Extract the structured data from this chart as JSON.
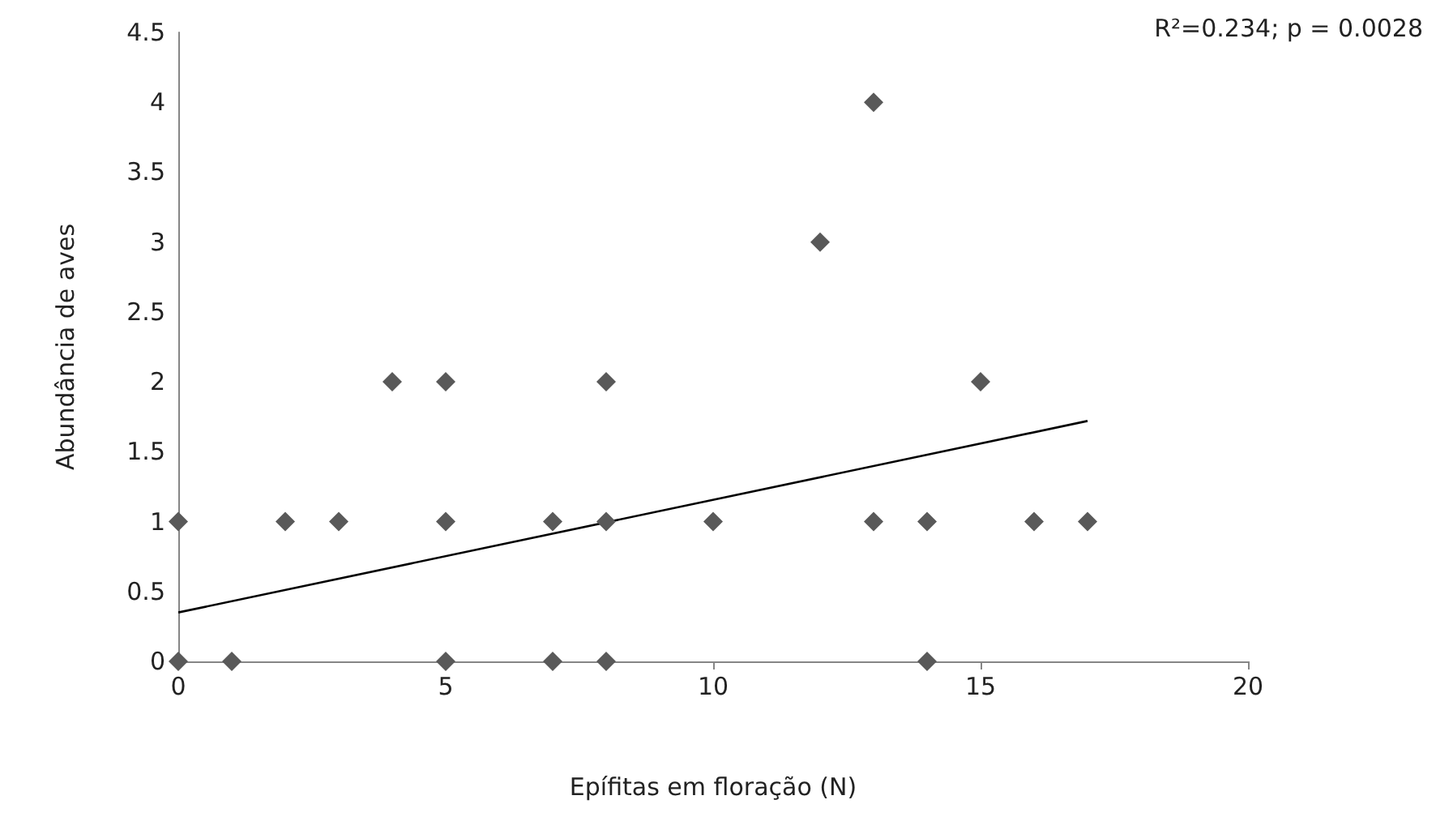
{
  "chart_data": {
    "type": "scatter",
    "xlabel": "Epífitas em floração (N)",
    "ylabel": "Abundância de aves",
    "annotations": [
      "R²=0.234; p = 0.0028"
    ],
    "xlim": [
      0,
      20
    ],
    "xticks": [
      0,
      5,
      10,
      15,
      20
    ],
    "ylim": [
      0,
      4.5
    ],
    "yticks": [
      0,
      0.5,
      1,
      1.5,
      2,
      2.5,
      3,
      3.5,
      4,
      4.5
    ],
    "grid": false,
    "marker": "diamond",
    "series": [
      {
        "color": "#595959",
        "x": [
          0,
          1,
          5,
          7,
          8,
          14,
          0,
          2,
          3,
          5,
          7,
          8,
          10,
          13,
          14,
          16,
          17,
          4,
          5,
          8,
          15,
          12,
          13
        ],
        "values": [
          0,
          0,
          0,
          0,
          0,
          0,
          1,
          1,
          1,
          1,
          1,
          1,
          1,
          1,
          1,
          1,
          1,
          2,
          2,
          2,
          2,
          3,
          4
        ]
      },
      {
        "type": "line",
        "color": "#000000",
        "marker": "none",
        "x": [
          0,
          17
        ],
        "values": [
          0.35,
          1.72
        ]
      }
    ]
  }
}
